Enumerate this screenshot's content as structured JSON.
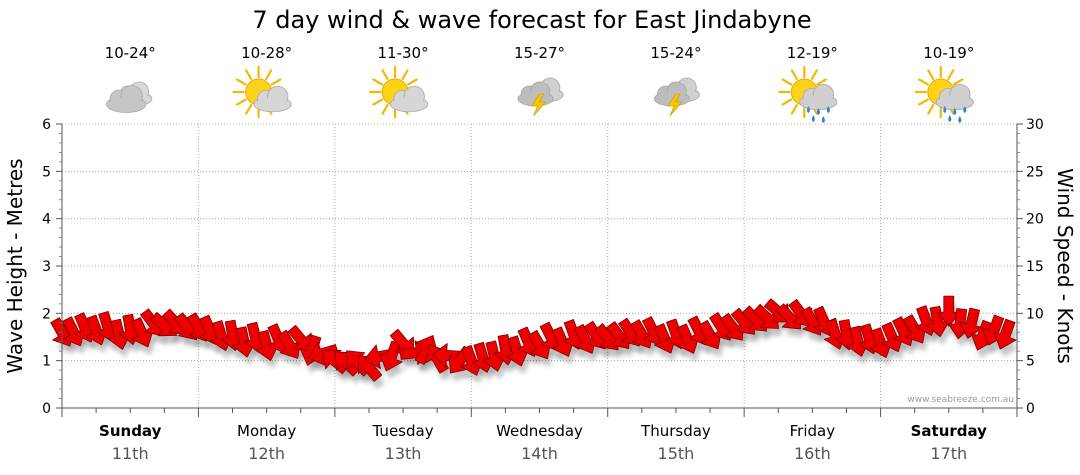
{
  "chart_data": {
    "type": "line",
    "title": "7 day wind & wave forecast for East Jindabyne",
    "ylabel_left": "Wave Height - Metres",
    "ylabel_right": "Wind Speed - Knots",
    "ylim_left": [
      0,
      6
    ],
    "ylim_right": [
      0,
      30
    ],
    "yticks_left": [
      "0",
      "1",
      "2",
      "3",
      "4",
      "5",
      "6"
    ],
    "yticks_right": [
      "0",
      "5",
      "10",
      "15",
      "20",
      "25",
      "30"
    ],
    "grid": true,
    "credit": "www.seabreeze.com.au",
    "days": [
      {
        "name": "Sunday",
        "date": "11th",
        "temp": "10-24°",
        "icon": "cloudy-icon",
        "bold": true
      },
      {
        "name": "Monday",
        "date": "12th",
        "temp": "10-28°",
        "icon": "partly-cloudy-icon",
        "bold": false
      },
      {
        "name": "Tuesday",
        "date": "13th",
        "temp": "11-30°",
        "icon": "partly-cloudy-icon",
        "bold": false
      },
      {
        "name": "Wednesday",
        "date": "14th",
        "temp": "15-27°",
        "icon": "storm-icon",
        "bold": false
      },
      {
        "name": "Thursday",
        "date": "15th",
        "temp": "15-24°",
        "icon": "storm-icon",
        "bold": false
      },
      {
        "name": "Friday",
        "date": "16th",
        "temp": "12-19°",
        "icon": "sun-showers-icon",
        "bold": false
      },
      {
        "name": "Saturday",
        "date": "17th",
        "temp": "10-19°",
        "icon": "sun-showers-icon",
        "bold": true
      }
    ],
    "series": [
      {
        "name": "Wind Speed",
        "unit": "knots",
        "x_hours": [
          0,
          6,
          12,
          18,
          24,
          30,
          36,
          42,
          48,
          54,
          60,
          66,
          72,
          78,
          84,
          90,
          96,
          102,
          108,
          114,
          120,
          126,
          132,
          138,
          144,
          150,
          156,
          162
        ],
        "values": [
          8,
          8.5,
          8,
          9,
          8.5,
          7.5,
          7,
          7,
          5,
          4.5,
          6.5,
          5.5,
          5,
          6,
          7,
          7.5,
          7.5,
          8,
          7.5,
          8,
          9,
          10,
          9.5,
          7.5,
          7,
          8.5,
          10,
          8
        ],
        "direction_deg": [
          60,
          70,
          80,
          40,
          60,
          80,
          75,
          50,
          220,
          230,
          50,
          240,
          70,
          80,
          60,
          70,
          50,
          60,
          70,
          60,
          50,
          40,
          60,
          80,
          70,
          60,
          90,
          110
        ]
      }
    ]
  }
}
